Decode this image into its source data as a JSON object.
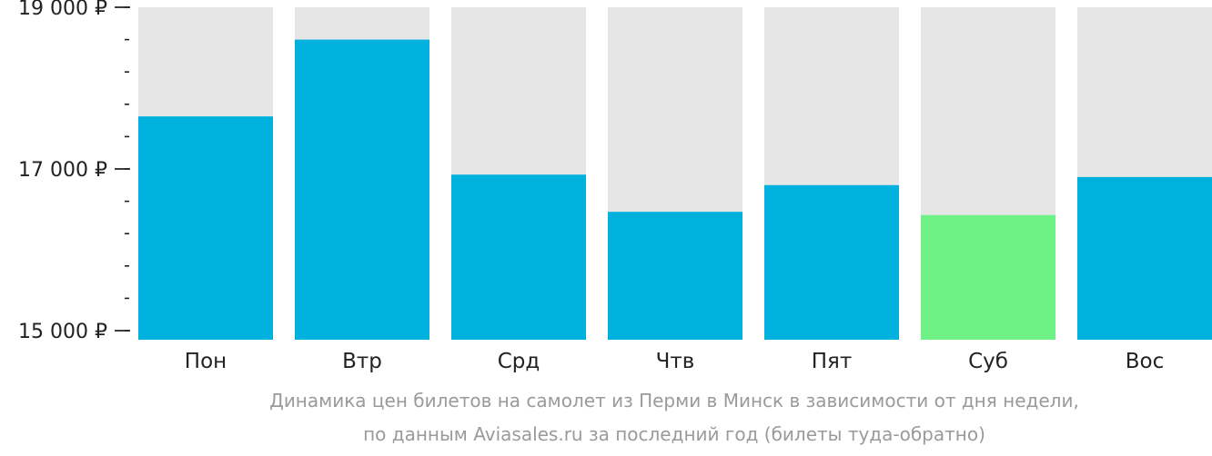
{
  "chart_data": {
    "type": "bar",
    "categories": [
      "Пон",
      "Втр",
      "Срд",
      "Чтв",
      "Пят",
      "Суб",
      "Вос"
    ],
    "values": [
      17650,
      18600,
      16930,
      16470,
      16800,
      16430,
      16900
    ],
    "ylim": [
      15000,
      19000
    ],
    "yticks": [
      {
        "value": 15000,
        "label": "15 000 ₽"
      },
      {
        "value": 17000,
        "label": "17 000 ₽"
      },
      {
        "value": 19000,
        "label": "19 000 ₽"
      }
    ],
    "minor_tick_step": 400,
    "highlight_index": 5
  },
  "colors": {
    "bar": "#00b0dd",
    "highlight_bar": "#6ef285",
    "bar_background": "#e6e6e6",
    "axis_text": "#222222",
    "caption": "#9a9a9a"
  },
  "caption": {
    "line1": "Динамика цен билетов на самолет из Перми в Минск в зависимости от дня недели,",
    "line2": "по данным Aviasales.ru за последний год (билеты туда-обратно)"
  }
}
